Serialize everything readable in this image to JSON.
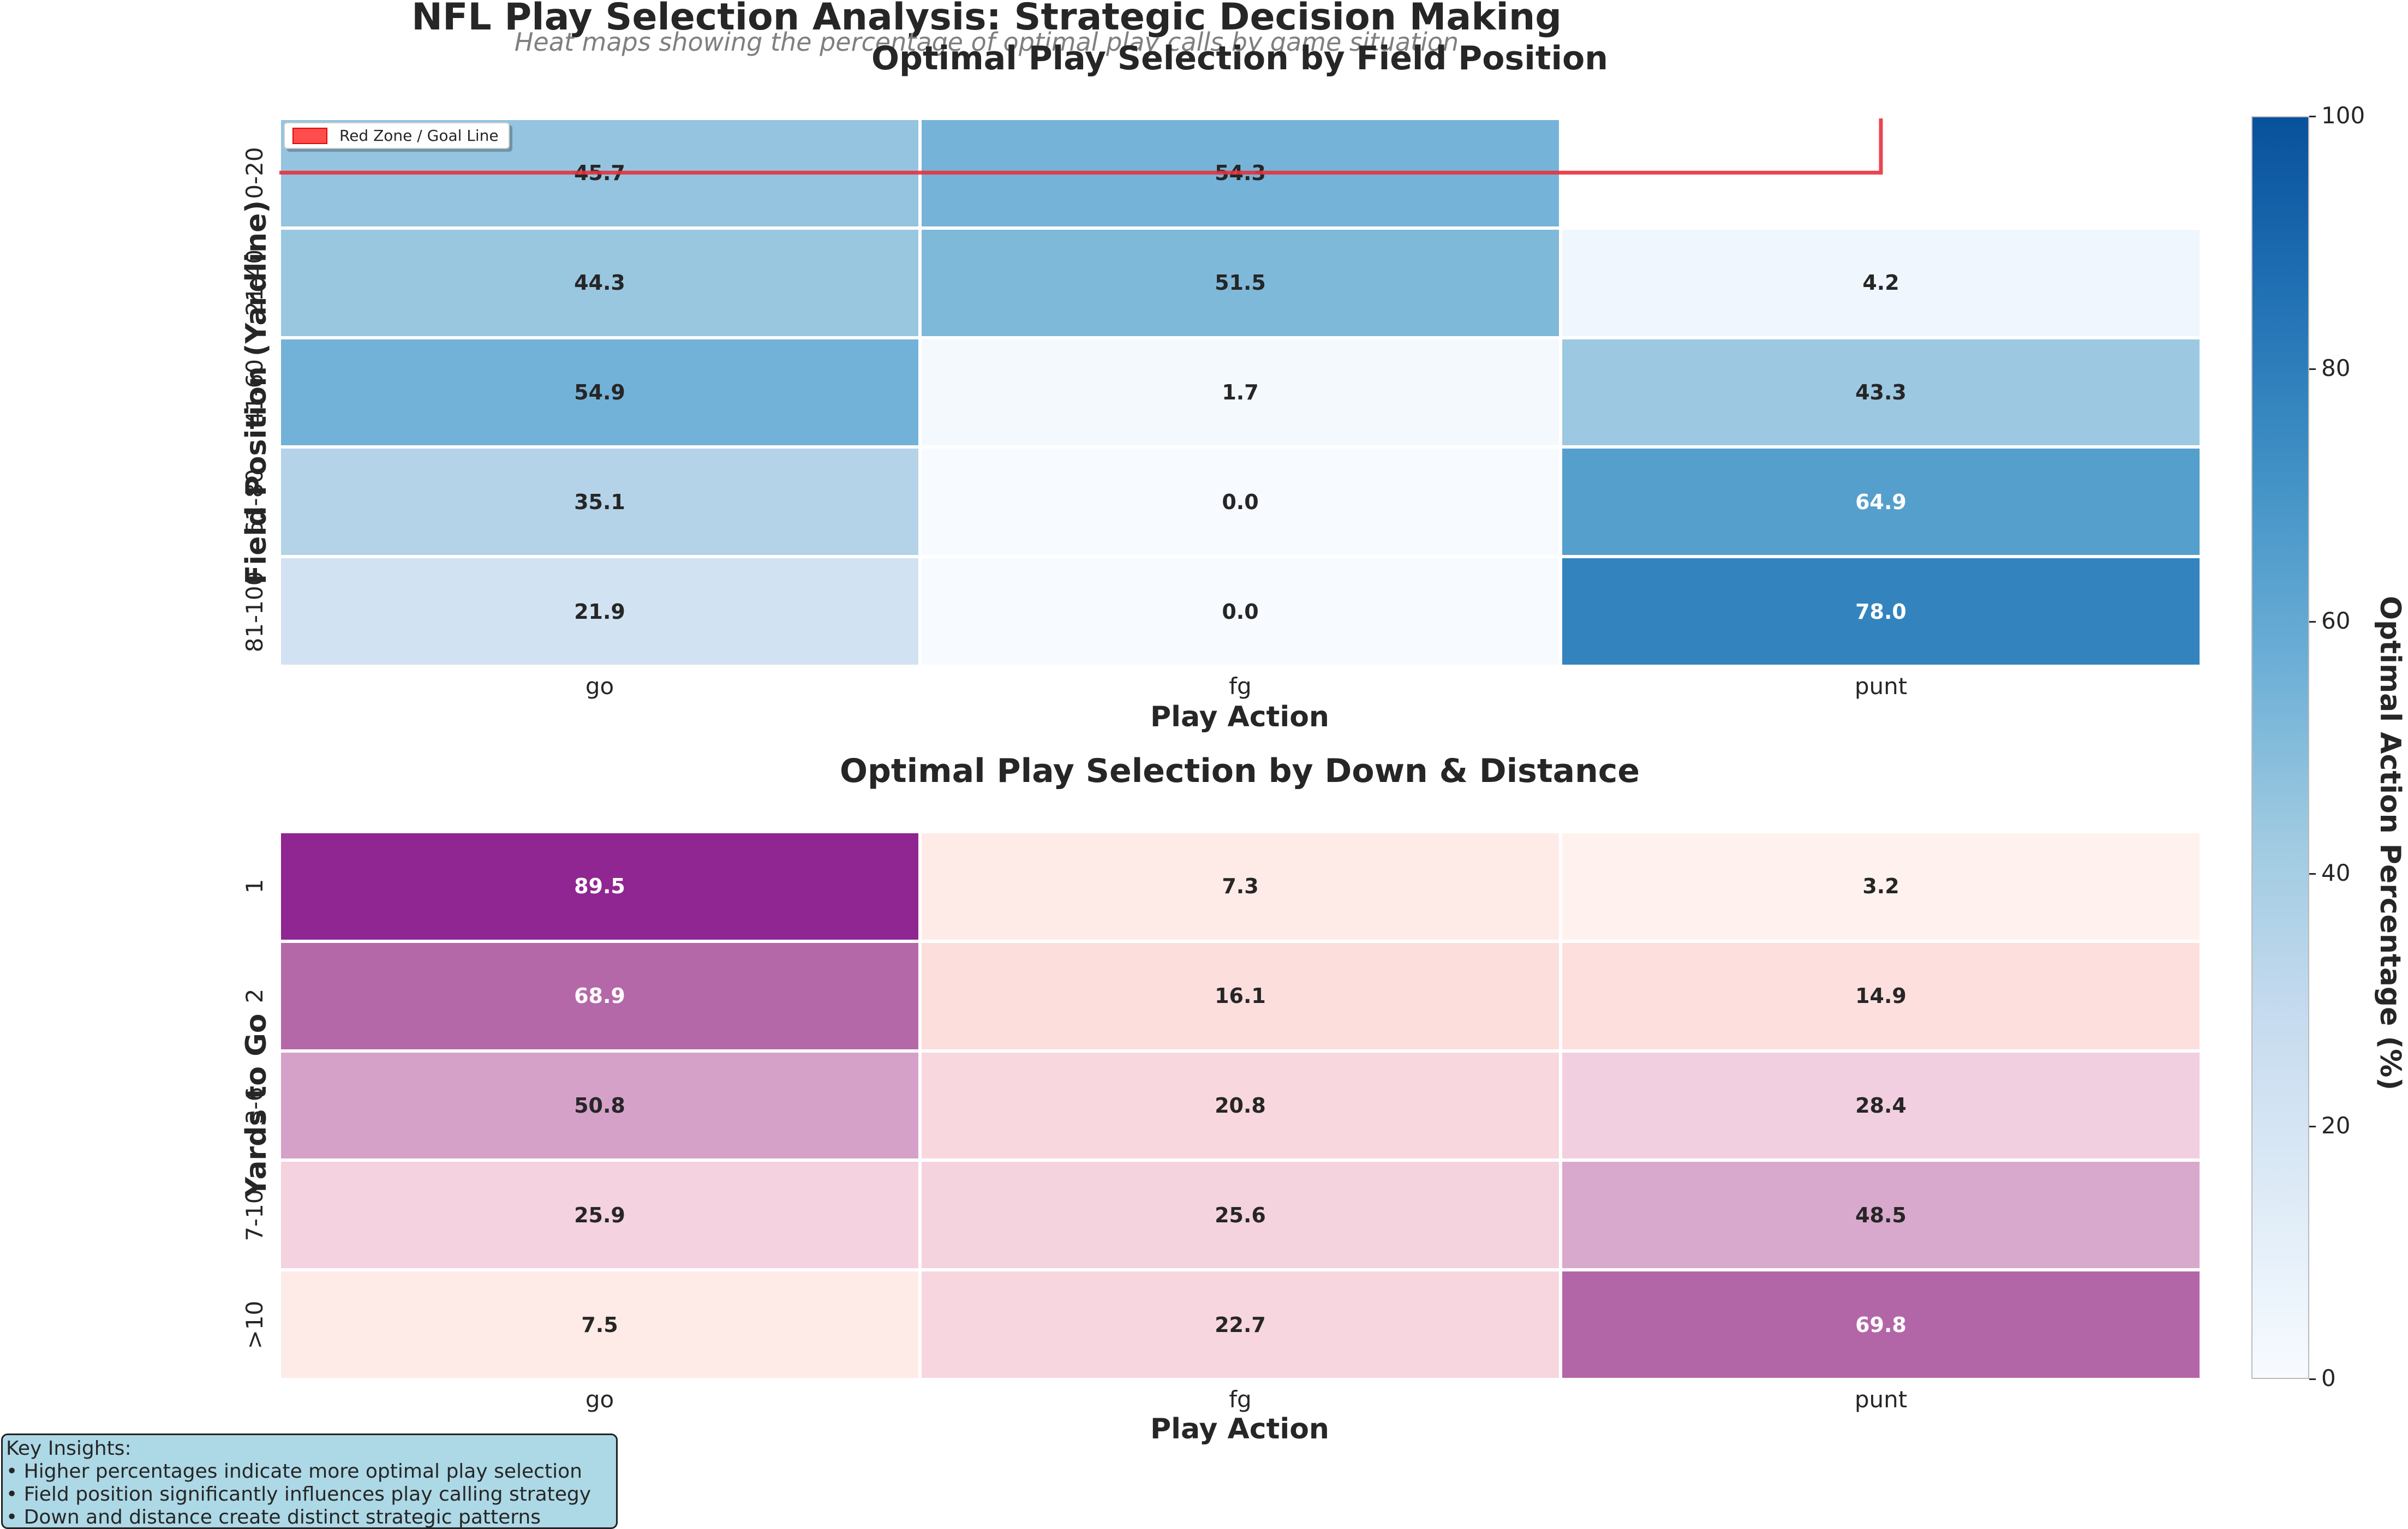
{
  "header": {
    "title": "NFL Play Selection Analysis: Strategic Decision Making",
    "subtitle": "Heat maps showing the percentage of optimal play calls by game situation"
  },
  "colors": {
    "field_scale": [
      "#f7fbff",
      "#deebf7",
      "#c6dbef",
      "#9ecae1",
      "#6baed6",
      "#4292c6",
      "#2171b5",
      "#08519c"
    ],
    "down_scale": [
      "#fff7f3",
      "#fde0dd",
      "#f2cfe0",
      "#e3bcd8",
      "#c98bbd",
      "#b061a4",
      "#97349a",
      "#7a0177"
    ],
    "red_zone": "#e8313d",
    "insight_box": "#add8e6"
  },
  "chart_data": [
    {
      "type": "heatmap",
      "title": "Optimal Play Selection by Field Position",
      "xlabel": "Play Action",
      "ylabel": "Field Position (Yardline)",
      "columns": [
        "go",
        "fg",
        "punt"
      ],
      "rows": [
        "0-20",
        "21-40",
        "41-60",
        "61-80",
        "81-100"
      ],
      "values": [
        [
          45.7,
          54.3,
          null
        ],
        [
          44.3,
          51.5,
          4.2
        ],
        [
          54.9,
          1.7,
          43.3
        ],
        [
          35.1,
          0.0,
          64.9
        ],
        [
          21.9,
          0.0,
          78.0
        ]
      ],
      "colormap": "Blues",
      "vmin": 0,
      "vmax": 100,
      "legend": {
        "label": "Red Zone / Goal Line",
        "placement": "top-left"
      },
      "annotation": {
        "type": "red-zone-line",
        "row": "0-20",
        "through_column": "punt"
      }
    },
    {
      "type": "heatmap",
      "title": "Optimal Play Selection by Down & Distance",
      "xlabel": "Play Action",
      "ylabel": "Yards to Go",
      "columns": [
        "go",
        "fg",
        "punt"
      ],
      "rows": [
        "1",
        "2",
        "3-6",
        "7-10",
        ">10"
      ],
      "values": [
        [
          89.5,
          7.3,
          3.2
        ],
        [
          68.9,
          16.1,
          14.9
        ],
        [
          50.8,
          20.8,
          28.4
        ],
        [
          25.9,
          25.6,
          48.5
        ],
        [
          7.5,
          22.7,
          69.8
        ]
      ],
      "colormap": "RdPu",
      "vmin": 0,
      "vmax": 100
    }
  ],
  "colorbar": {
    "label": "Optimal Action Percentage (%)",
    "ticks": [
      "0",
      "20",
      "40",
      "60",
      "80",
      "100"
    ],
    "min": 0,
    "max": 100
  },
  "insights": {
    "heading": "Key Insights:",
    "items": [
      "• Higher percentages indicate more optimal play selection",
      "• Field position significantly influences play calling strategy",
      "• Down and distance create distinct strategic patterns"
    ]
  }
}
